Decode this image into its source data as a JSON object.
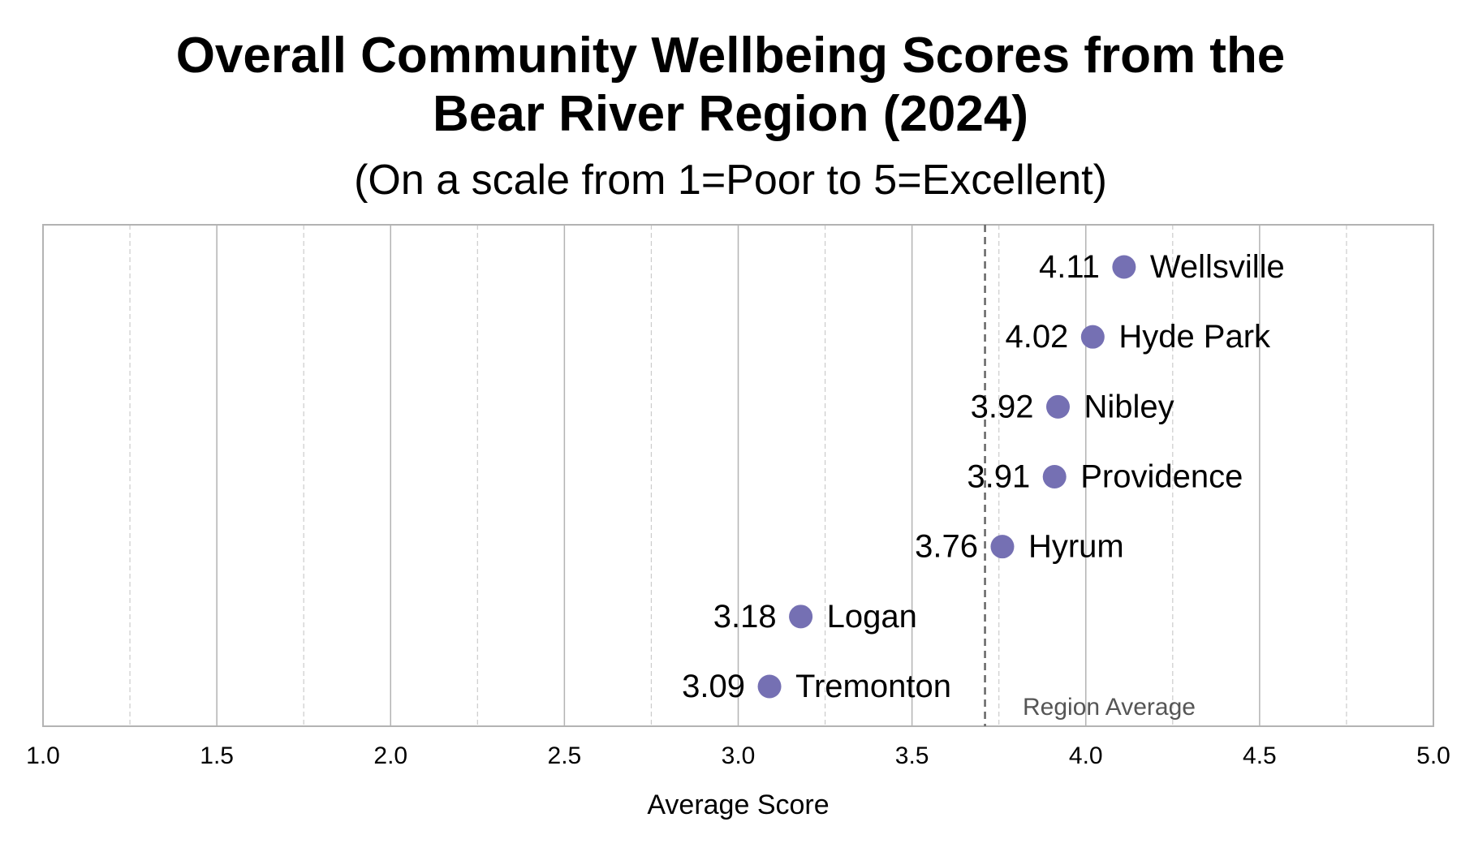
{
  "chart_data": {
    "type": "scatter",
    "title": "Overall Community Wellbeing Scores from the Bear River Region (2024)",
    "title_lines": [
      "Overall Community Wellbeing Scores from the",
      "Bear River Region (2024)"
    ],
    "subtitle": "(On a scale from 1=Poor to 5=Excellent)",
    "xlabel": "Average Score",
    "ylabel": "",
    "xlim": [
      1.0,
      5.0
    ],
    "xticks": [
      "1.0",
      "1.5",
      "2.0",
      "2.5",
      "3.0",
      "3.5",
      "4.0",
      "4.5",
      "5.0"
    ],
    "minor_grid": [
      1.25,
      1.75,
      2.25,
      2.75,
      3.25,
      3.75,
      4.25,
      4.75
    ],
    "grid": true,
    "points": [
      {
        "name": "Wellsville",
        "value": 4.11,
        "label": "4.11"
      },
      {
        "name": "Hyde Park",
        "value": 4.02,
        "label": "4.02"
      },
      {
        "name": "Nibley",
        "value": 3.92,
        "label": "3.92"
      },
      {
        "name": "Providence",
        "value": 3.91,
        "label": "3.91"
      },
      {
        "name": "Hyrum",
        "value": 3.76,
        "label": "3.76"
      },
      {
        "name": "Logan",
        "value": 3.18,
        "label": "3.18"
      },
      {
        "name": "Tremonton",
        "value": 3.09,
        "label": "3.09"
      }
    ],
    "reference_line": {
      "label": "Region Average",
      "value": 3.71
    },
    "colors": {
      "point": "#7570b3",
      "grid": "#b3b3b3",
      "reference": "#666666",
      "reference_label": "#555555"
    }
  }
}
